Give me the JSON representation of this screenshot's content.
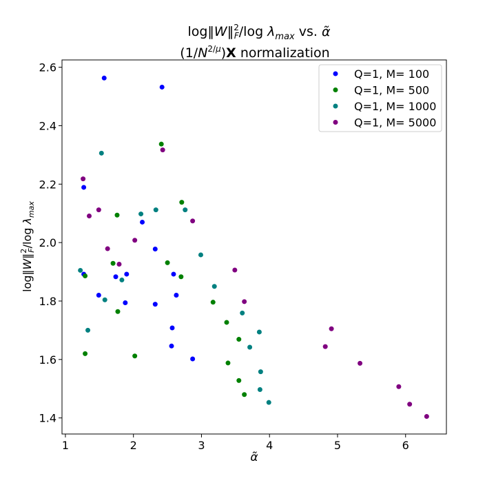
{
  "chart_data": {
    "type": "scatter",
    "title_line1": "log‖W‖²_F/log λ_max vs. α̃",
    "title_line2": "(1/N^{2/μ})X normalization",
    "xlabel": "α̃",
    "ylabel": "log‖W‖²_F/log λ_max",
    "xlim": [
      0.95,
      6.6
    ],
    "ylim": [
      1.345,
      2.625
    ],
    "xticks": [
      1,
      2,
      3,
      4,
      5,
      6
    ],
    "yticks": [
      1.4,
      1.6,
      1.8,
      2.0,
      2.2,
      2.4,
      2.6
    ],
    "xtick_labels": [
      "1",
      "2",
      "3",
      "4",
      "5",
      "6"
    ],
    "ytick_labels": [
      "1.4",
      "1.6",
      "1.8",
      "2.0",
      "2.2",
      "2.4",
      "2.6"
    ],
    "grid": false,
    "legend_position": "top-right",
    "series": [
      {
        "name": "Q=1, M= 100",
        "color": "#0000ff",
        "points": [
          [
            1.57,
            2.563
          ],
          [
            2.42,
            2.532
          ],
          [
            1.27,
            2.189
          ],
          [
            2.13,
            2.07
          ],
          [
            2.32,
            1.978
          ],
          [
            1.27,
            1.892
          ],
          [
            1.9,
            1.892
          ],
          [
            2.59,
            1.892
          ],
          [
            1.74,
            1.883
          ],
          [
            1.49,
            1.82
          ],
          [
            2.63,
            1.82
          ],
          [
            1.88,
            1.794
          ],
          [
            2.32,
            1.789
          ],
          [
            2.57,
            1.708
          ],
          [
            2.56,
            1.646
          ],
          [
            2.87,
            1.602
          ]
        ]
      },
      {
        "name": "Q=1, M= 500",
        "color": "#008000",
        "points": [
          [
            2.41,
            2.337
          ],
          [
            2.71,
            2.138
          ],
          [
            1.76,
            2.094
          ],
          [
            2.5,
            1.931
          ],
          [
            1.7,
            1.929
          ],
          [
            1.29,
            1.886
          ],
          [
            2.7,
            1.883
          ],
          [
            3.17,
            1.796
          ],
          [
            1.77,
            1.764
          ],
          [
            3.37,
            1.727
          ],
          [
            3.55,
            1.669
          ],
          [
            1.29,
            1.62
          ],
          [
            2.02,
            1.612
          ],
          [
            3.39,
            1.588
          ],
          [
            3.55,
            1.528
          ],
          [
            3.63,
            1.48
          ]
        ]
      },
      {
        "name": "Q=1, M= 1000",
        "color": "#008080",
        "points": [
          [
            1.53,
            2.306
          ],
          [
            2.33,
            2.112
          ],
          [
            2.76,
            2.112
          ],
          [
            2.11,
            2.098
          ],
          [
            2.99,
            1.958
          ],
          [
            1.22,
            1.905
          ],
          [
            1.83,
            1.872
          ],
          [
            3.19,
            1.85
          ],
          [
            1.58,
            1.804
          ],
          [
            3.6,
            1.759
          ],
          [
            1.33,
            1.7
          ],
          [
            3.85,
            1.694
          ],
          [
            3.71,
            1.642
          ],
          [
            3.87,
            1.558
          ],
          [
            3.86,
            1.497
          ],
          [
            3.99,
            1.453
          ]
        ]
      },
      {
        "name": "Q=1, M= 5000",
        "color": "#800080",
        "points": [
          [
            2.43,
            2.317
          ],
          [
            1.26,
            2.218
          ],
          [
            1.49,
            2.112
          ],
          [
            1.35,
            2.091
          ],
          [
            2.87,
            2.074
          ],
          [
            2.02,
            2.008
          ],
          [
            1.62,
            1.979
          ],
          [
            1.79,
            1.926
          ],
          [
            3.49,
            1.906
          ],
          [
            3.63,
            1.798
          ],
          [
            4.91,
            1.705
          ],
          [
            4.82,
            1.644
          ],
          [
            5.33,
            1.587
          ],
          [
            5.9,
            1.507
          ],
          [
            6.06,
            1.447
          ],
          [
            6.31,
            1.405
          ]
        ]
      }
    ]
  }
}
